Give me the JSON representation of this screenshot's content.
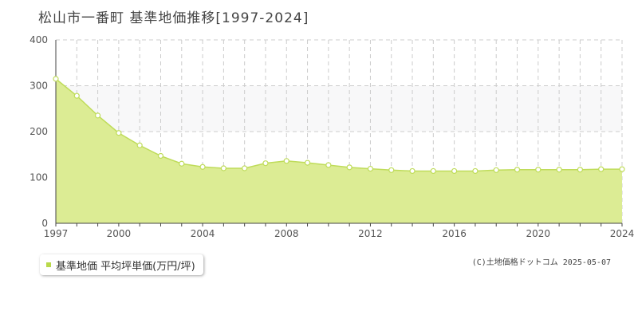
{
  "title": "松山市一番町 基準地価推移[1997-2024]",
  "legend_label": "基準地価 平均坪単価(万円/坪)",
  "credit": "(C)土地価格ドットコム 2025-05-07",
  "colors": {
    "fill": "#dcec94",
    "line": "#bfdc5a",
    "band": "#f8f8f9",
    "grid": "#cccccc",
    "legend_swatch": "#b9d94a"
  },
  "chart_data": {
    "type": "area",
    "x": [
      1997,
      1998,
      1999,
      2000,
      2001,
      2002,
      2003,
      2004,
      2005,
      2006,
      2007,
      2008,
      2009,
      2010,
      2011,
      2012,
      2013,
      2014,
      2015,
      2016,
      2017,
      2018,
      2019,
      2020,
      2021,
      2022,
      2023,
      2024
    ],
    "series": [
      {
        "name": "基準地価 平均坪単価(万円/坪)",
        "values": [
          315,
          278,
          235,
          197,
          170,
          147,
          130,
          123,
          120,
          120,
          131,
          136,
          132,
          127,
          122,
          119,
          116,
          114,
          114,
          114,
          114,
          116,
          117,
          117,
          117,
          117,
          118,
          118
        ]
      }
    ],
    "xlim": [
      1997,
      2024
    ],
    "ylim": [
      0,
      400
    ],
    "yticks": [
      0,
      100,
      200,
      300,
      400
    ],
    "xticks": [
      1997,
      2000,
      2004,
      2008,
      2012,
      2016,
      2020,
      2024
    ],
    "shaded_band": [
      200,
      300
    ],
    "grid": true,
    "legend_position": "bottom-left"
  }
}
